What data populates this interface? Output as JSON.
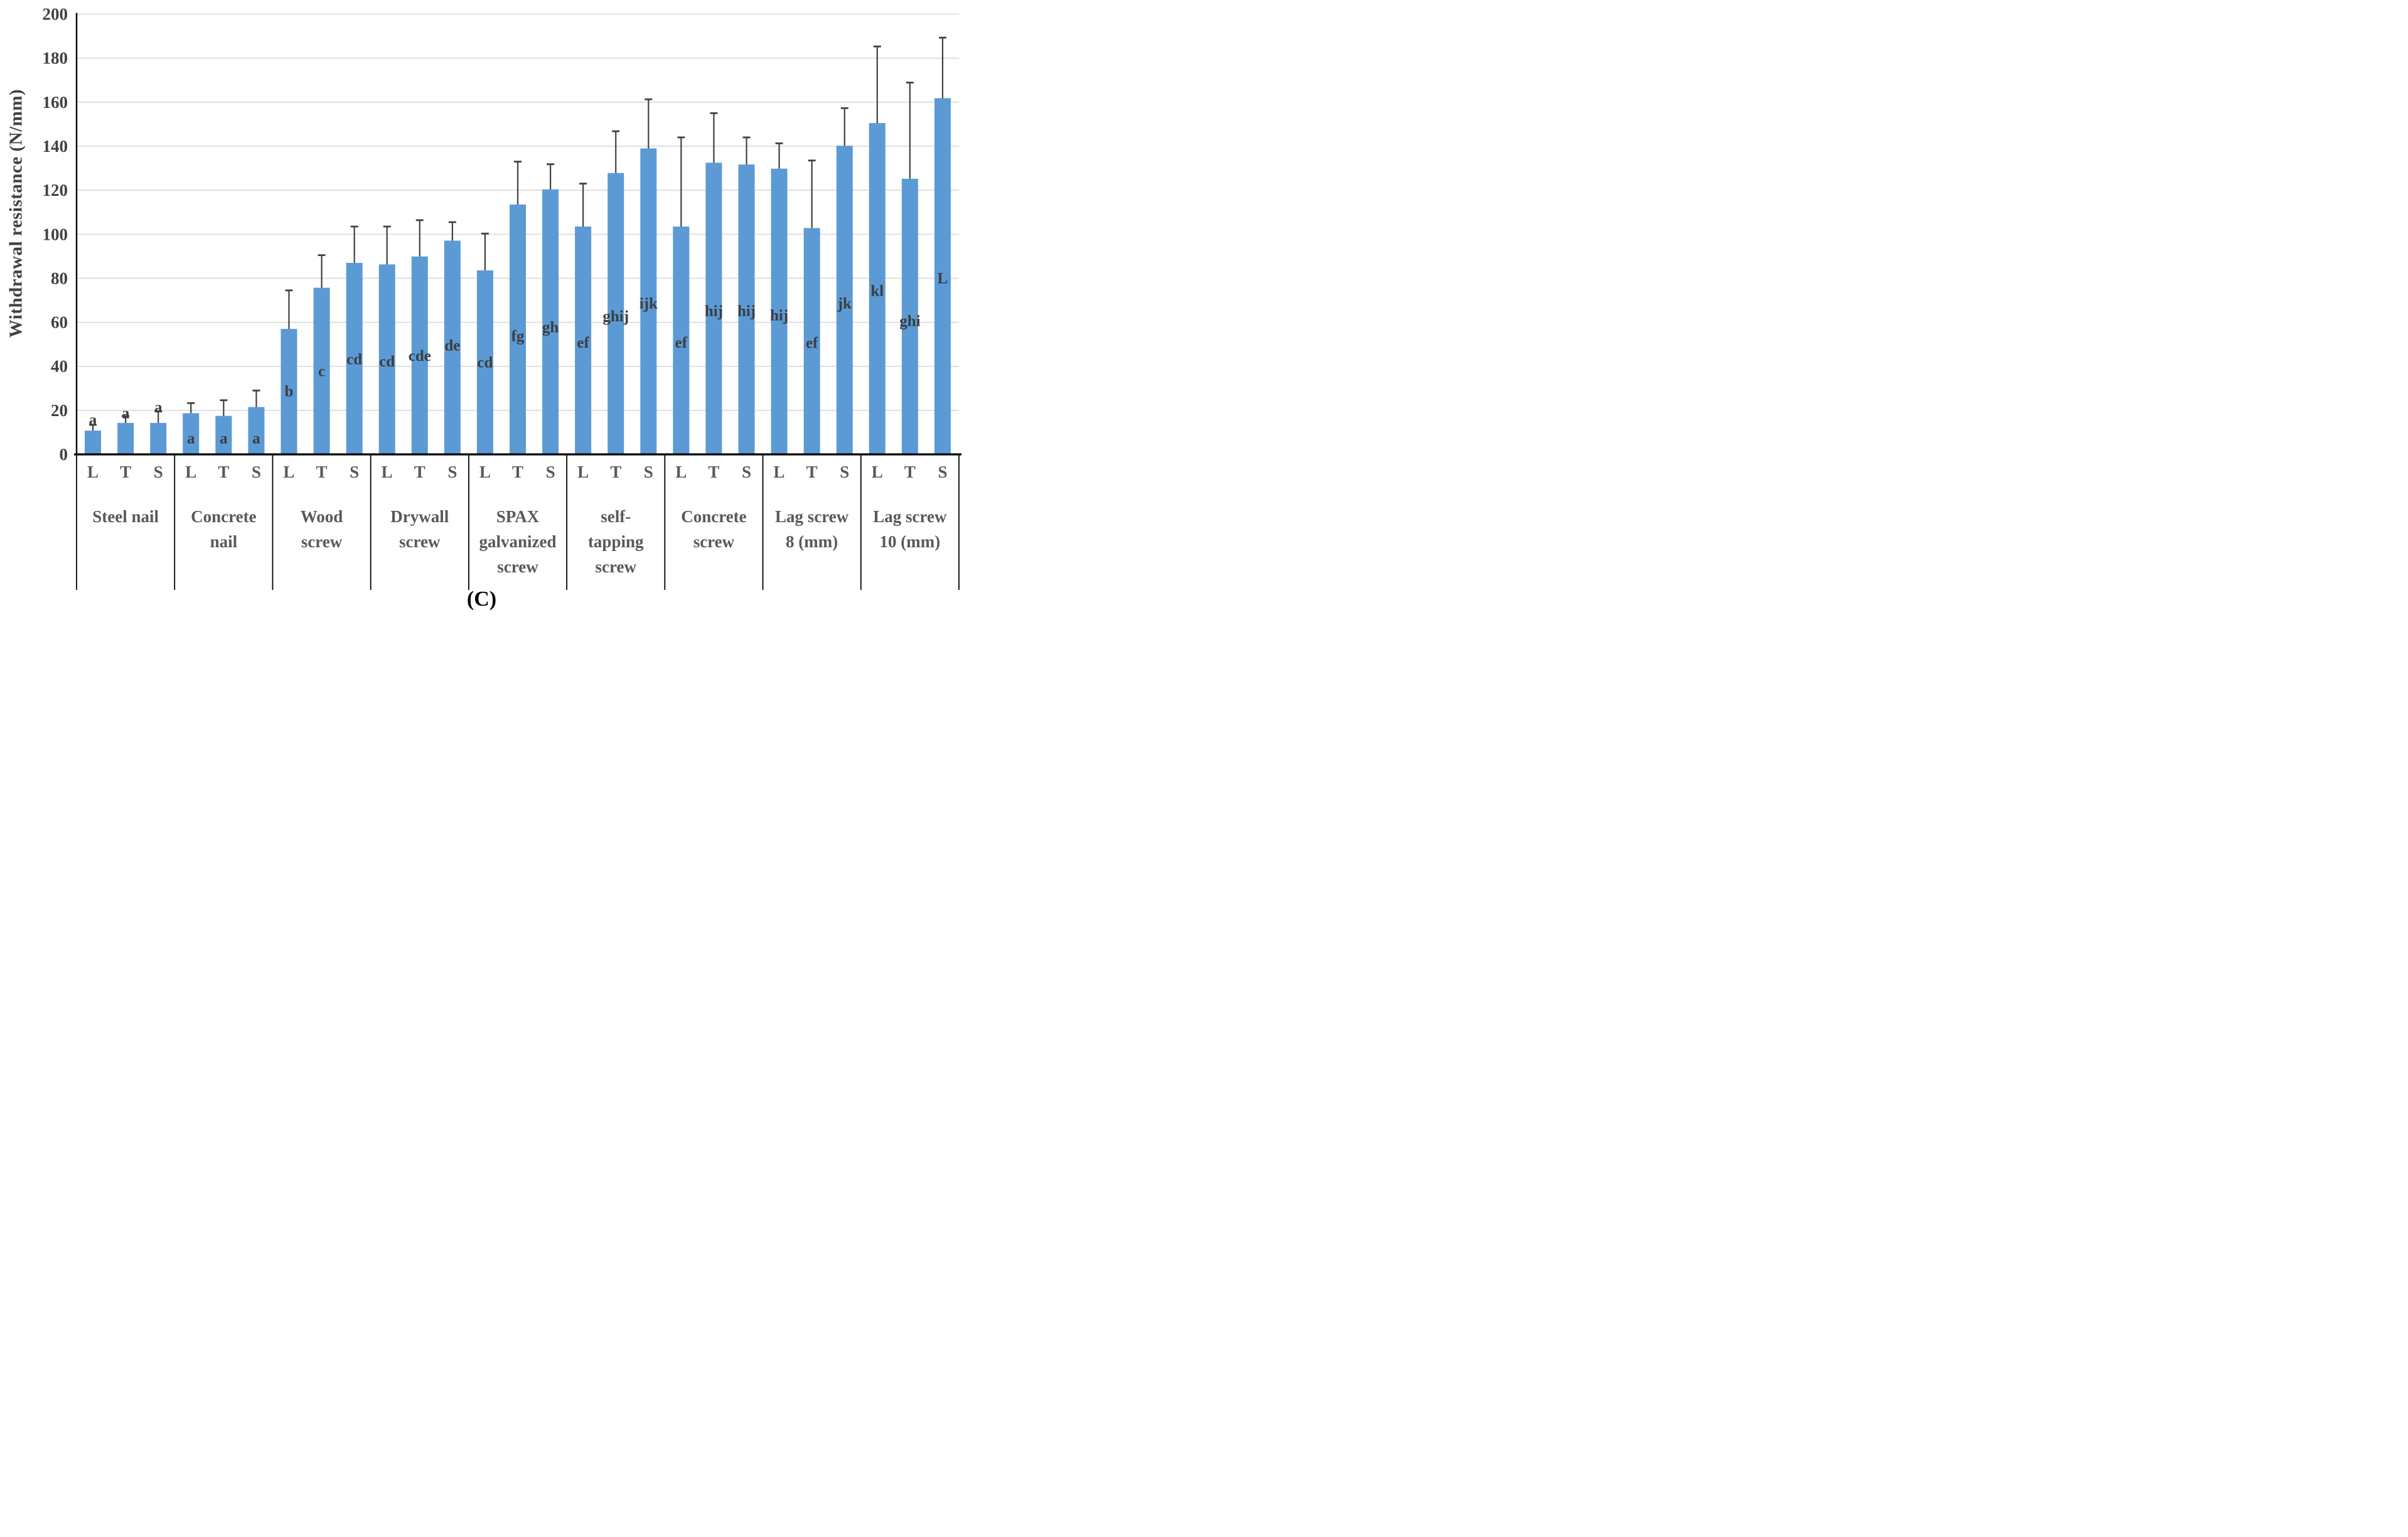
{
  "figure": {
    "caption": "(C)"
  },
  "colors": {
    "bar": "#5B9AD5",
    "error_bar": "#404040",
    "gridline": "#D9D9D9",
    "axis": "#000000",
    "tick_text": "#404040",
    "category_text": "#595959",
    "letter_text": "#3D3D3D",
    "caption_text": "#000000"
  },
  "chart_data": {
    "type": "bar",
    "title": "",
    "ylabel": "Withdrawal resistance (N/mm)",
    "ylim": [
      0,
      200
    ],
    "yticks": [
      0,
      20,
      40,
      60,
      80,
      100,
      120,
      140,
      160,
      180,
      200
    ],
    "grid": true,
    "legend_position": "none",
    "sub_labels": [
      "L",
      "T",
      "S"
    ],
    "groups": [
      {
        "name": "Steel nail",
        "name_lines": [
          "Steel nail"
        ],
        "bars": [
          {
            "orientation": "L",
            "value": 10.8,
            "error_top": 13.4,
            "letter": "a",
            "letter_y": 15.9
          },
          {
            "orientation": "T",
            "value": 14.3,
            "error_top": 17.4,
            "letter": "a",
            "letter_y": 19.0
          },
          {
            "orientation": "S",
            "value": 14.3,
            "error_top": 19.6,
            "letter": "a",
            "letter_y": 21.7
          }
        ]
      },
      {
        "name": "Concrete nail",
        "name_lines": [
          "Concrete",
          "nail"
        ],
        "bars": [
          {
            "orientation": "L",
            "value": 18.7,
            "error_top": 23.3,
            "letter": "a",
            "letter_y": 7.5
          },
          {
            "orientation": "T",
            "value": 17.5,
            "error_top": 24.6,
            "letter": "a",
            "letter_y": 7.5
          },
          {
            "orientation": "S",
            "value": 21.5,
            "error_top": 29.0,
            "letter": "a",
            "letter_y": 7.5
          }
        ]
      },
      {
        "name": "Wood screw",
        "name_lines": [
          "Wood",
          "screw"
        ],
        "bars": [
          {
            "orientation": "L",
            "value": 57.0,
            "error_top": 74.5,
            "letter": "b",
            "letter_y": 29.0
          },
          {
            "orientation": "T",
            "value": 75.7,
            "error_top": 90.5,
            "letter": "c",
            "letter_y": 38.0
          },
          {
            "orientation": "S",
            "value": 87.0,
            "error_top": 103.5,
            "letter": "cd",
            "letter_y": 43.5
          }
        ]
      },
      {
        "name": "Drywall screw",
        "name_lines": [
          "Drywall",
          "screw"
        ],
        "bars": [
          {
            "orientation": "L",
            "value": 86.3,
            "error_top": 103.5,
            "letter": "cd",
            "letter_y": 42.5
          },
          {
            "orientation": "T",
            "value": 89.9,
            "error_top": 106.4,
            "letter": "cde",
            "letter_y": 45.0
          },
          {
            "orientation": "S",
            "value": 97.1,
            "error_top": 105.5,
            "letter": "de",
            "letter_y": 49.8
          }
        ]
      },
      {
        "name": "SPAX galvanized screw",
        "name_lines": [
          "SPAX",
          "galvanized",
          "screw"
        ],
        "bars": [
          {
            "orientation": "L",
            "value": 83.6,
            "error_top": 100.3,
            "letter": "cd",
            "letter_y": 42.0
          },
          {
            "orientation": "T",
            "value": 113.5,
            "error_top": 133.0,
            "letter": "fg",
            "letter_y": 54.0
          },
          {
            "orientation": "S",
            "value": 120.4,
            "error_top": 131.8,
            "letter": "gh",
            "letter_y": 58.0
          }
        ]
      },
      {
        "name": "self-tapping screw",
        "name_lines": [
          "self-",
          "tapping",
          "screw"
        ],
        "bars": [
          {
            "orientation": "L",
            "value": 103.5,
            "error_top": 123.0,
            "letter": "ef",
            "letter_y": 51.0
          },
          {
            "orientation": "T",
            "value": 127.8,
            "error_top": 146.8,
            "letter": "ghij",
            "letter_y": 63.0
          },
          {
            "orientation": "S",
            "value": 139.0,
            "error_top": 161.3,
            "letter": "ijk",
            "letter_y": 68.8
          }
        ]
      },
      {
        "name": "Concrete screw",
        "name_lines": [
          "Concrete",
          "screw"
        ],
        "bars": [
          {
            "orientation": "L",
            "value": 103.5,
            "error_top": 144.0,
            "letter": "ef",
            "letter_y": 51.0
          },
          {
            "orientation": "T",
            "value": 132.5,
            "error_top": 155.0,
            "letter": "hij",
            "letter_y": 65.5
          },
          {
            "orientation": "S",
            "value": 131.7,
            "error_top": 144.0,
            "letter": "hij",
            "letter_y": 65.5
          }
        ]
      },
      {
        "name": "Lag screw 8 (mm)",
        "name_lines": [
          "Lag screw",
          "8 (mm)"
        ],
        "bars": [
          {
            "orientation": "L",
            "value": 129.8,
            "error_top": 141.3,
            "letter": "hij",
            "letter_y": 63.4
          },
          {
            "orientation": "T",
            "value": 102.8,
            "error_top": 133.5,
            "letter": "ef",
            "letter_y": 50.9
          },
          {
            "orientation": "S",
            "value": 140.2,
            "error_top": 157.3,
            "letter": "jk",
            "letter_y": 68.8
          }
        ]
      },
      {
        "name": "Lag screw 10 (mm)",
        "name_lines": [
          "Lag screw",
          "10 (mm)"
        ],
        "bars": [
          {
            "orientation": "L",
            "value": 150.5,
            "error_top": 185.3,
            "letter": "kl",
            "letter_y": 74.5
          },
          {
            "orientation": "T",
            "value": 125.2,
            "error_top": 168.9,
            "letter": "ghi",
            "letter_y": 60.8
          },
          {
            "orientation": "S",
            "value": 161.8,
            "error_top": 189.3,
            "letter": "L",
            "letter_y": 80.2
          }
        ]
      }
    ]
  }
}
